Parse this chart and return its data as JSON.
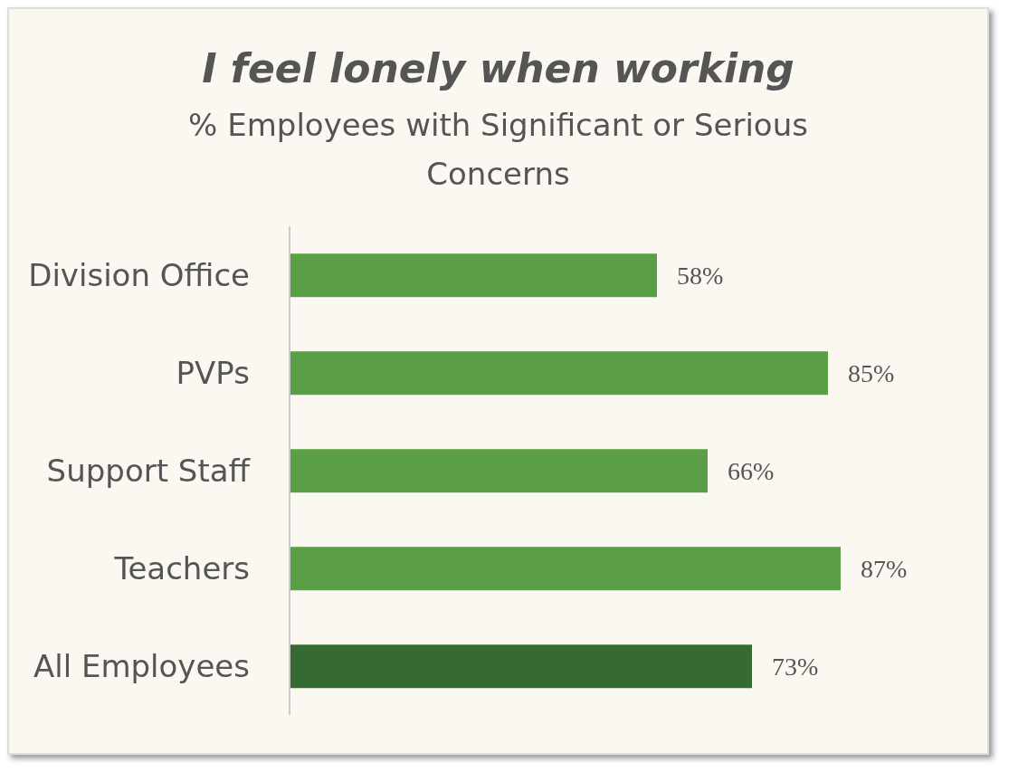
{
  "chart_data": {
    "type": "bar",
    "orientation": "horizontal",
    "title": "I feel lonely when working",
    "subtitle": "% Employees with Significant or Serious Concerns",
    "categories": [
      "Division Office",
      "PVPs",
      "Support Staff",
      "Teachers",
      "All Employees"
    ],
    "values": [
      58,
      85,
      66,
      87,
      73
    ],
    "colors": [
      "#5a9e45",
      "#5a9e45",
      "#5a9e45",
      "#5a9e45",
      "#356b30"
    ],
    "value_labels": [
      "58%",
      "85%",
      "66%",
      "87%",
      "73%"
    ],
    "tick_labels": "y"
  }
}
